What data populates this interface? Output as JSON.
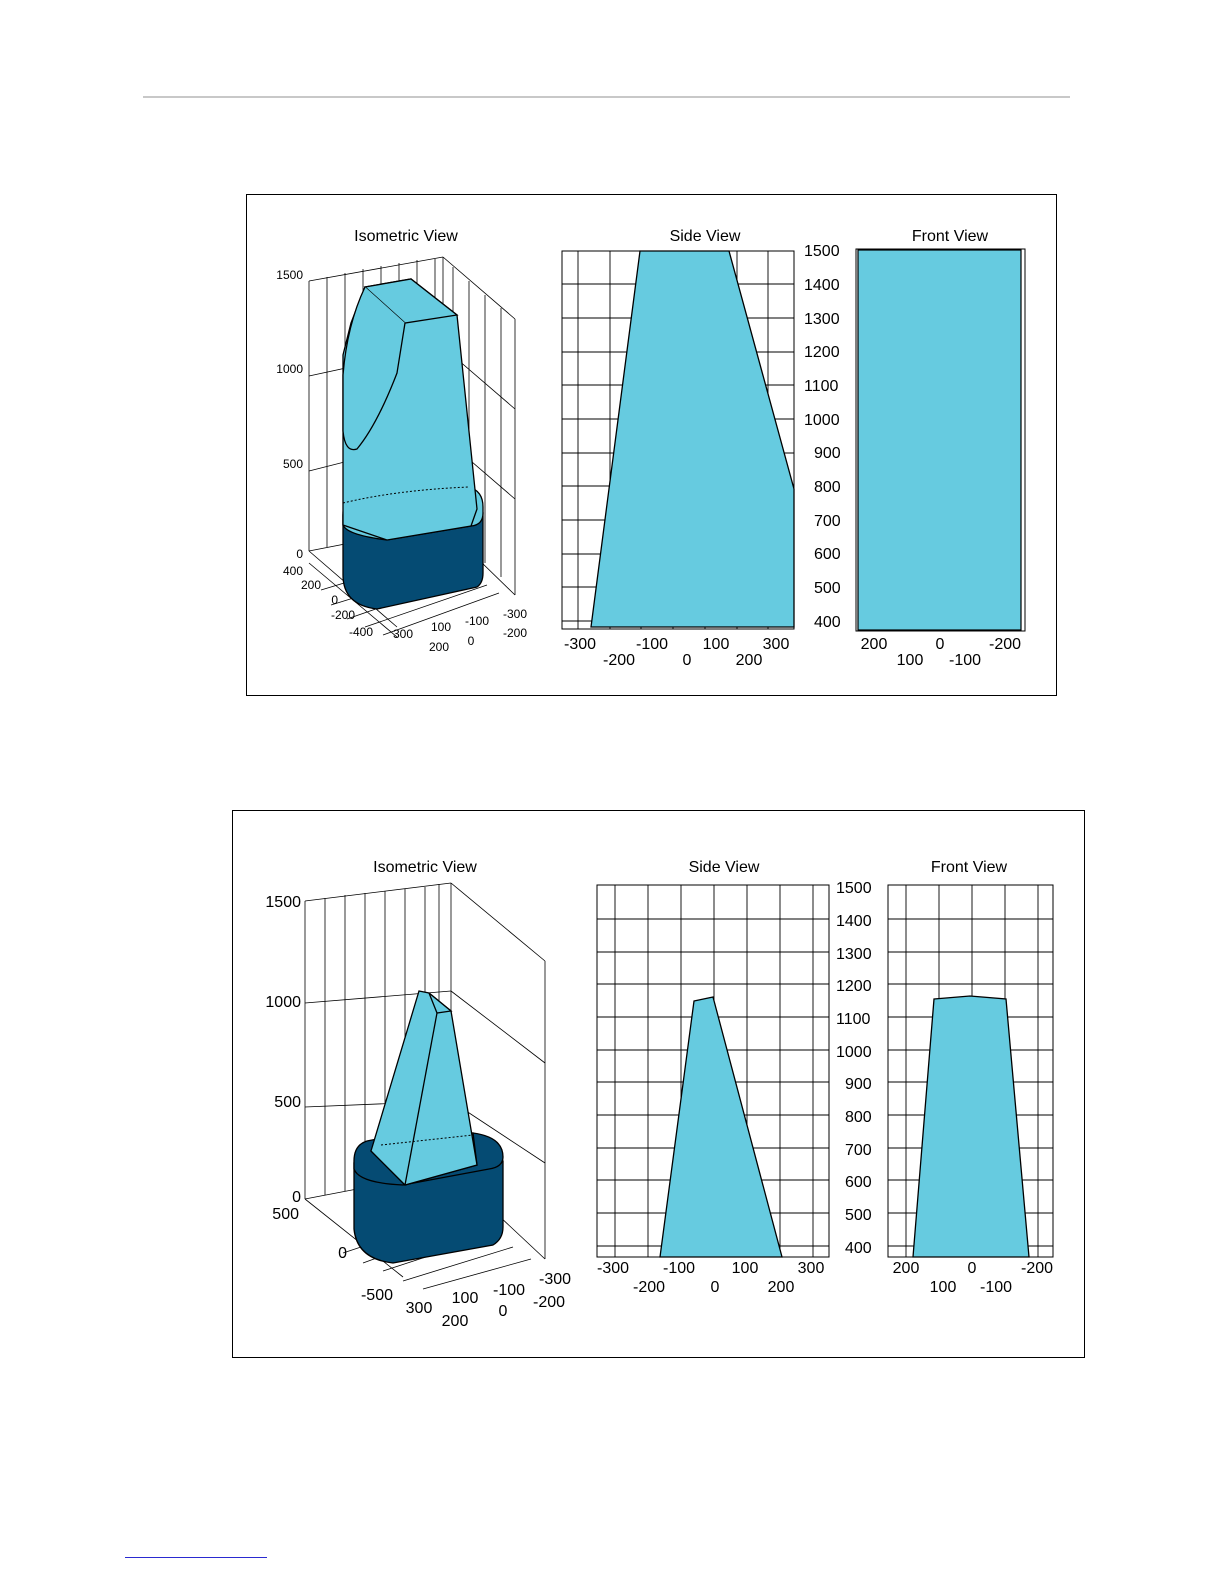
{
  "colors": {
    "light_fill": "#66cbe0",
    "dark_fill": "#054b73",
    "grid": "#000000"
  },
  "figures": [
    {
      "views": {
        "iso": {
          "title": "Isometric View",
          "z_ticks": [
            "1500",
            "1000",
            "500",
            "0"
          ],
          "x_ticks": [
            "400",
            "200",
            "0",
            "-200",
            "-400"
          ],
          "y_ticks_a": [
            "300",
            "100",
            "-100",
            "-300"
          ],
          "y_ticks_b": [
            "200",
            "0",
            "-200"
          ]
        },
        "side": {
          "title": "Side View",
          "x_ticks_top": [
            "-300",
            "-100",
            "100",
            "300"
          ],
          "x_ticks_bottom": [
            "-200",
            "0",
            "200"
          ],
          "y_ticks": [
            "1500",
            "1400",
            "1300",
            "1200",
            "1100",
            "1000",
            "900",
            "800",
            "700",
            "600",
            "500",
            "400"
          ]
        },
        "front": {
          "title": "Front View",
          "x_ticks_top": [
            "200",
            "0",
            "-200"
          ],
          "x_ticks_bottom": [
            "100",
            "-100"
          ]
        }
      }
    },
    {
      "views": {
        "iso": {
          "title": "Isometric View",
          "z_ticks": [
            "1500",
            "1000",
            "500",
            "0"
          ],
          "x_ticks": [
            "500",
            "0",
            "-500"
          ],
          "y_ticks_a": [
            "300",
            "100",
            "-100",
            "-300"
          ],
          "y_ticks_b": [
            "200",
            "0",
            "-200"
          ]
        },
        "side": {
          "title": "Side View",
          "x_ticks_top": [
            "-300",
            "-100",
            "100",
            "300"
          ],
          "x_ticks_bottom": [
            "-200",
            "0",
            "200"
          ],
          "y_ticks": [
            "1500",
            "1400",
            "1300",
            "1200",
            "1100",
            "1000",
            "900",
            "800",
            "700",
            "600",
            "500",
            "400"
          ]
        },
        "front": {
          "title": "Front View",
          "x_ticks_top": [
            "200",
            "0",
            "-200"
          ],
          "x_ticks_bottom": [
            "100",
            "-100"
          ]
        }
      }
    }
  ]
}
